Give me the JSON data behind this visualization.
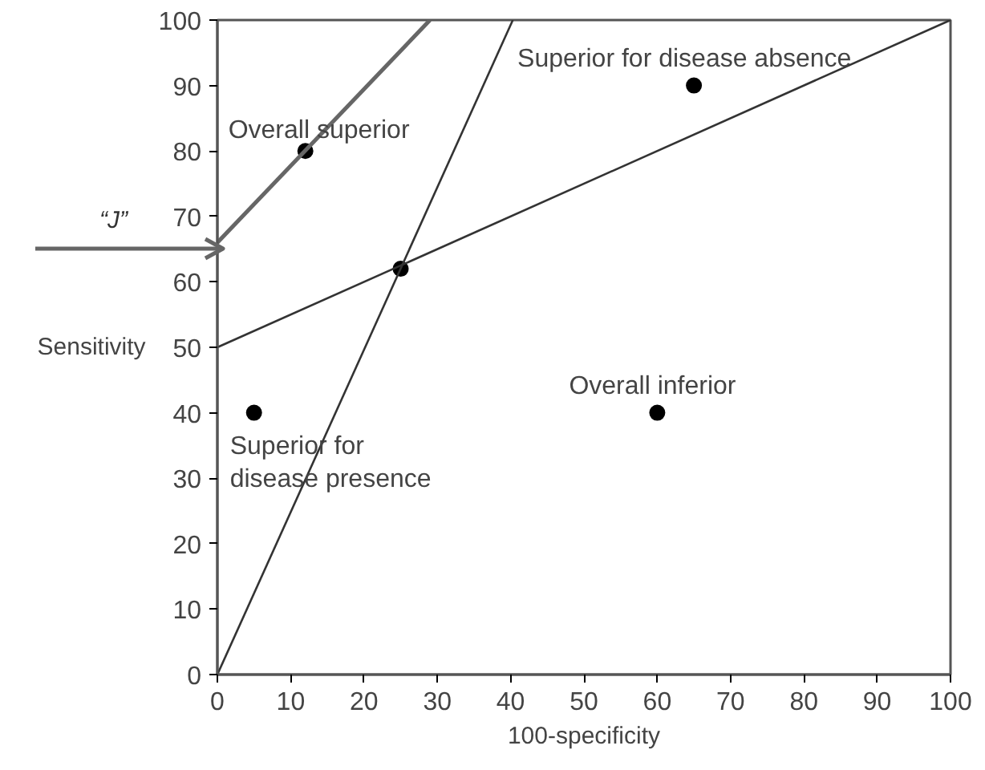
{
  "chart_data": {
    "type": "scatter",
    "xlabel": "100-specificity",
    "ylabel": "Sensitivity",
    "xlim": [
      0,
      100
    ],
    "ylim": [
      0,
      100
    ],
    "xticks": [
      0,
      10,
      20,
      30,
      40,
      50,
      60,
      70,
      80,
      90,
      100
    ],
    "yticks": [
      0,
      10,
      20,
      30,
      40,
      50,
      60,
      70,
      80,
      90,
      100
    ],
    "grid": false,
    "marker": "circle",
    "series": [
      {
        "color": "#000000",
        "x": [
          12,
          25,
          65,
          5,
          60
        ],
        "values": [
          80,
          62,
          90,
          40,
          40
        ]
      },
      {
        "type": "line",
        "marker": "none",
        "color": "#333333",
        "x": [
          0,
          40.3
        ],
        "values": [
          0,
          100
        ]
      },
      {
        "type": "line",
        "marker": "none",
        "color": "#333333",
        "x": [
          0,
          100
        ],
        "values": [
          50,
          100
        ]
      },
      {
        "type": "line",
        "marker": "none",
        "color": "#666666",
        "x": [
          0,
          29
        ],
        "values": [
          66,
          100
        ]
      }
    ],
    "annotations": [
      {
        "text": "Overall superior",
        "x": 12,
        "y": 80
      },
      {
        "text": "Superior for disease absence",
        "x": 65,
        "y": 90
      },
      {
        "text": "Overall inferior",
        "x": 60,
        "y": 40
      },
      {
        "text": "Superior for\ndisease presence",
        "x": 5,
        "y": 40
      },
      "“J”"
    ]
  }
}
